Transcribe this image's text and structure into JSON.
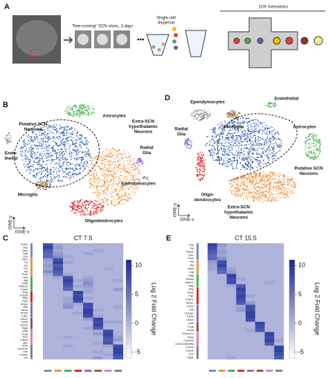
{
  "panel_a": {
    "letter": "A",
    "slices_label": "\"free-running\" SCN slices, 3 days",
    "dispersal_label": [
      "Single-cell",
      "dispersal"
    ],
    "platform_label": "10X Genomics"
  },
  "tsne": [
    {
      "letter": "B",
      "x_axis": "tSNE-x",
      "y_axis": "tSNE-y",
      "clusters": [
        {
          "label": [
            "Putative SCN",
            "Neurons"
          ],
          "color": "#2f5fb3"
        },
        {
          "label": [
            "Astrocytes"
          ],
          "color": "#4caf50"
        },
        {
          "label": [
            "Extra-SCN",
            "hypothalamic",
            "Neurons"
          ],
          "color": "#f28a30"
        },
        {
          "label": [
            "Radial",
            "Glia"
          ],
          "color": "#7a4fbf"
        },
        {
          "label": [
            "Ependymocytes"
          ],
          "color": "#8a8a8a"
        },
        {
          "label": [
            "Endo-",
            "thelial"
          ],
          "color": "#9a9a9a"
        },
        {
          "label": [
            "Microglia"
          ],
          "color": "#8b5a2b"
        },
        {
          "label": [
            "Oligodendrocytes"
          ],
          "color": "#d62728"
        }
      ]
    },
    {
      "letter": "D",
      "x_axis": "tSNE-x",
      "y_axis": "tSNE-y",
      "clusters": [
        {
          "label": [
            "Ependymocytes"
          ],
          "color": "#8a8a8a"
        },
        {
          "label": [
            "Endothelial"
          ],
          "color": "#4caf50"
        },
        {
          "label": [
            "Microglia"
          ],
          "color": "#8b5a2b"
        },
        {
          "label": [
            "Astrocytes"
          ],
          "color": "#4caf50"
        },
        {
          "label": [
            "Radial",
            "Glia"
          ],
          "color": "#7a4fbf"
        },
        {
          "label": [
            "Putative SCN",
            "Neurons"
          ],
          "color": "#2f5fb3"
        },
        {
          "label": [
            "Oligo-",
            "dendrocytes"
          ],
          "color": "#d62728"
        },
        {
          "label": [
            "Extra-SCN",
            "hypothalamic",
            "Neurons"
          ],
          "color": "#f28a30"
        }
      ]
    }
  ],
  "heatmaps": [
    {
      "letter": "C",
      "title": "CT 7.5",
      "colorbar_label": "Log 2 Fold Change",
      "clim": [
        -6,
        11
      ],
      "colorbar_ticks": [
        10,
        5,
        0,
        -5
      ],
      "groups": [
        {
          "color": "#6a8fc8",
          "genes": [
            "Prok2",
            "Avp",
            "Nms",
            "Cga",
            "Cck"
          ],
          "rows": [
            [
              8,
              1,
              0,
              0,
              0,
              0,
              0,
              0
            ],
            [
              9,
              2,
              0,
              0,
              0,
              0,
              0,
              0
            ],
            [
              7,
              1,
              0,
              0,
              0,
              1,
              0,
              0
            ],
            [
              6,
              2,
              0,
              0,
              1,
              0,
              0,
              0
            ],
            [
              6,
              3,
              1,
              0,
              0,
              0,
              0,
              0
            ]
          ]
        },
        {
          "color": "#f0923b",
          "genes": [
            "Tac1",
            "Trh",
            "Sst",
            "Grp",
            "Vip",
            "Penk"
          ],
          "rows": [
            [
              2,
              8,
              0,
              0,
              0,
              0,
              0,
              0
            ],
            [
              1,
              9,
              1,
              0,
              0,
              0,
              0,
              0
            ],
            [
              2,
              7,
              0,
              0,
              0,
              0,
              0,
              0
            ],
            [
              1,
              8,
              0,
              0,
              0,
              0,
              1,
              0
            ],
            [
              3,
              7,
              0,
              0,
              0,
              0,
              0,
              0
            ],
            [
              1,
              6,
              1,
              0,
              0,
              0,
              0,
              0
            ]
          ]
        },
        {
          "color": "#4caf50",
          "genes": [
            "Npy",
            "Agt",
            "Gfap",
            "Aldh1l1",
            "Fxyd1"
          ],
          "rows": [
            [
              0,
              1,
              8,
              0,
              1,
              0,
              0,
              0
            ],
            [
              0,
              0,
              9,
              1,
              2,
              0,
              0,
              1
            ],
            [
              0,
              0,
              8,
              0,
              3,
              0,
              0,
              0
            ],
            [
              0,
              0,
              7,
              1,
              2,
              0,
              0,
              0
            ],
            [
              0,
              0,
              6,
              0,
              1,
              0,
              0,
              2
            ]
          ]
        },
        {
          "color": "#d62728",
          "genes": [
            "Mog",
            "Enpp6",
            "Mbp",
            "Plp1"
          ],
          "rows": [
            [
              0,
              0,
              0,
              9,
              1,
              0,
              0,
              0
            ],
            [
              0,
              0,
              0,
              8,
              0,
              0,
              0,
              0
            ],
            [
              0,
              0,
              1,
              9,
              1,
              0,
              0,
              0
            ],
            [
              0,
              0,
              1,
              8,
              0,
              0,
              0,
              0
            ]
          ]
        },
        {
          "color": "#9467bd",
          "genes": [
            "Bmp4",
            "Mt3",
            "Ms4a",
            "Hmmr",
            "Cdk1"
          ],
          "rows": [
            [
              0,
              0,
              2,
              1,
              8,
              0,
              0,
              0
            ],
            [
              0,
              0,
              3,
              0,
              8,
              0,
              0,
              1
            ],
            [
              0,
              0,
              0,
              0,
              9,
              1,
              0,
              0
            ],
            [
              0,
              0,
              0,
              1,
              9,
              0,
              0,
              0
            ],
            [
              0,
              0,
              0,
              0,
              8,
              1,
              0,
              0
            ]
          ]
        },
        {
          "color": "#8c564b",
          "genes": [
            "Ube2c",
            "Cldn5",
            "Gpr34",
            "Mybl"
          ],
          "rows": [
            [
              0,
              0,
              0,
              0,
              2,
              9,
              0,
              0
            ],
            [
              0,
              0,
              0,
              0,
              0,
              8,
              1,
              1
            ],
            [
              0,
              0,
              0,
              0,
              0,
              9,
              0,
              0
            ],
            [
              0,
              0,
              0,
              0,
              1,
              7,
              0,
              0
            ]
          ]
        },
        {
          "color": "#e377c2",
          "genes": [
            "Ly86",
            "C1qa",
            "Tcn2",
            "Ctla2a",
            "Bez"
          ],
          "rows": [
            [
              0,
              0,
              0,
              0,
              0,
              1,
              8,
              0
            ],
            [
              0,
              0,
              0,
              0,
              0,
              2,
              9,
              0
            ],
            [
              0,
              0,
              1,
              0,
              0,
              0,
              8,
              1
            ],
            [
              0,
              0,
              0,
              0,
              0,
              0,
              7,
              2
            ],
            [
              0,
              0,
              0,
              0,
              0,
              1,
              8,
              0
            ]
          ]
        },
        {
          "color": "#7f7f7f",
          "genes": [
            "Srtm",
            "Ccdc153",
            "Lum",
            "Col3a1",
            "Vtn"
          ],
          "rows": [
            [
              0,
              0,
              1,
              0,
              0,
              0,
              1,
              8
            ],
            [
              0,
              0,
              0,
              0,
              0,
              0,
              0,
              9
            ],
            [
              0,
              0,
              0,
              0,
              0,
              1,
              0,
              9
            ],
            [
              0,
              0,
              0,
              0,
              0,
              0,
              1,
              8
            ],
            [
              0,
              0,
              0,
              0,
              0,
              2,
              0,
              7
            ]
          ]
        }
      ]
    },
    {
      "letter": "E",
      "title": "CT 15.5",
      "colorbar_label": "Log 2 Fold Change",
      "clim": [
        -6,
        11
      ],
      "colorbar_ticks": [
        10,
        5,
        0,
        -5
      ],
      "groups": [
        {
          "color": "#6a8fc8",
          "genes": [
            "Avp",
            "Vip",
            "Rasd1",
            "Dlk1",
            "Pnoc"
          ],
          "rows": [
            [
              9,
              2,
              0,
              0,
              0,
              0,
              0,
              0
            ],
            [
              8,
              1,
              0,
              0,
              0,
              0,
              0,
              0
            ],
            [
              7,
              2,
              0,
              0,
              0,
              0,
              0,
              0
            ],
            [
              6,
              1,
              0,
              0,
              0,
              0,
              0,
              0
            ],
            [
              6,
              3,
              0,
              0,
              0,
              0,
              0,
              0
            ]
          ]
        },
        {
          "color": "#f0923b",
          "genes": [
            "Sst",
            "Nts",
            "Ddit3",
            "Agt"
          ],
          "rows": [
            [
              2,
              8,
              0,
              0,
              0,
              0,
              0,
              0
            ],
            [
              1,
              9,
              0,
              0,
              0,
              0,
              0,
              0
            ],
            [
              1,
              7,
              1,
              0,
              0,
              0,
              0,
              0
            ],
            [
              0,
              6,
              2,
              0,
              0,
              0,
              0,
              0
            ]
          ]
        },
        {
          "color": "#4caf50",
          "genes": [
            "Gfap",
            "Slc4a4",
            "Aldh1l1",
            "Mbp"
          ],
          "rows": [
            [
              0,
              0,
              9,
              0,
              0,
              0,
              0,
              0
            ],
            [
              0,
              0,
              8,
              1,
              0,
              0,
              0,
              0
            ],
            [
              0,
              0,
              8,
              0,
              0,
              0,
              1,
              0
            ],
            [
              0,
              0,
              1,
              7,
              0,
              0,
              0,
              0
            ]
          ]
        },
        {
          "color": "#d62728",
          "genes": [
            "Mog",
            "Mobp",
            "Plp1",
            "Cldn11",
            "Bcas1"
          ],
          "rows": [
            [
              0,
              0,
              0,
              9,
              0,
              0,
              0,
              0
            ],
            [
              0,
              0,
              0,
              8,
              0,
              0,
              0,
              0
            ],
            [
              0,
              0,
              0,
              9,
              1,
              0,
              0,
              0
            ],
            [
              0,
              0,
              0,
              8,
              0,
              0,
              0,
              0
            ],
            [
              0,
              0,
              0,
              7,
              2,
              0,
              0,
              0
            ]
          ]
        },
        {
          "color": "#9467bd",
          "genes": [
            "Col1b",
            "Cd9",
            "Nusap1",
            "Top2a",
            "Ube2c"
          ],
          "rows": [
            [
              0,
              0,
              0,
              1,
              8,
              0,
              0,
              0
            ],
            [
              0,
              0,
              0,
              2,
              8,
              0,
              0,
              0
            ],
            [
              0,
              0,
              0,
              0,
              9,
              0,
              0,
              0
            ],
            [
              0,
              0,
              0,
              0,
              9,
              0,
              0,
              0
            ],
            [
              0,
              0,
              0,
              0,
              8,
              0,
              0,
              0
            ]
          ]
        },
        {
          "color": "#8c564b",
          "genes": [
            "Ly86",
            "C1qa",
            "Bcl2a"
          ],
          "rows": [
            [
              0,
              0,
              0,
              0,
              0,
              9,
              0,
              0
            ],
            [
              0,
              0,
              0,
              0,
              0,
              8,
              0,
              0
            ],
            [
              0,
              0,
              0,
              0,
              1,
              7,
              0,
              0
            ]
          ]
        },
        {
          "color": "#e377c2",
          "genes": [
            "Tmem212",
            "Foxj1",
            "Ccdc153",
            "1700012B09Rik"
          ],
          "rows": [
            [
              0,
              0,
              0,
              0,
              0,
              0,
              9,
              0
            ],
            [
              0,
              0,
              0,
              0,
              0,
              0,
              8,
              0
            ],
            [
              0,
              0,
              0,
              0,
              0,
              0,
              9,
              1
            ],
            [
              0,
              0,
              0,
              0,
              0,
              0,
              7,
              0
            ]
          ]
        },
        {
          "color": "#7f7f7f",
          "genes": [
            "Col1a1",
            "Col1a2",
            "Dcn",
            "Ptgds"
          ],
          "rows": [
            [
              0,
              0,
              0,
              0,
              0,
              0,
              0,
              9
            ],
            [
              0,
              0,
              0,
              0,
              0,
              0,
              0,
              9
            ],
            [
              0,
              0,
              0,
              0,
              0,
              0,
              0,
              8
            ],
            [
              0,
              0,
              1,
              0,
              0,
              0,
              0,
              7
            ]
          ]
        }
      ]
    }
  ]
}
